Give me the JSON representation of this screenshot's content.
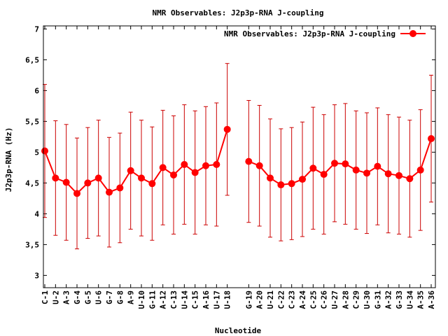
{
  "chart_data": {
    "type": "line",
    "title": "NMR Observables: J2p3p-RNA J-coupling",
    "xlabel": "Nucleotide",
    "ylabel": "J2p3p-RNA (Hz)",
    "ylim": [
      2.8,
      7.05
    ],
    "yticks": [
      "3",
      "3.5",
      "4",
      "4.5",
      "5",
      "5.5",
      "6",
      "6.5",
      "7"
    ],
    "legend_position": "top-right",
    "color": "#ff0000",
    "error_bar_color": "#cc0000",
    "series": [
      {
        "name": "NMR Observables: J2p3p-RNA J-coupling",
        "points": [
          {
            "label": "C-1",
            "y": 5.02,
            "err": 1.08
          },
          {
            "label": "U-2",
            "y": 4.58,
            "err": 0.93
          },
          {
            "label": "A-3",
            "y": 4.51,
            "err": 0.94
          },
          {
            "label": "G-4",
            "y": 4.33,
            "err": 0.9
          },
          {
            "label": "G-5",
            "y": 4.5,
            "err": 0.9
          },
          {
            "label": "U-6",
            "y": 4.58,
            "err": 0.94
          },
          {
            "label": "G-7",
            "y": 4.35,
            "err": 0.89
          },
          {
            "label": "G-8",
            "y": 4.42,
            "err": 0.89
          },
          {
            "label": "A-9",
            "y": 4.7,
            "err": 0.95
          },
          {
            "label": "U-10",
            "y": 4.58,
            "err": 0.94
          },
          {
            "label": "G-11",
            "y": 4.49,
            "err": 0.92
          },
          {
            "label": "A-12",
            "y": 4.75,
            "err": 0.93
          },
          {
            "label": "C-13",
            "y": 4.63,
            "err": 0.96
          },
          {
            "label": "U-14",
            "y": 4.8,
            "err": 0.97
          },
          {
            "label": "C-15",
            "y": 4.67,
            "err": 1.0
          },
          {
            "label": "A-16",
            "y": 4.78,
            "err": 0.96
          },
          {
            "label": "U-17",
            "y": 4.8,
            "err": 1.0
          },
          {
            "label": "U-18",
            "y": 5.37,
            "err": 1.07
          },
          {
            "label": "G-19",
            "y": 4.85,
            "err": 0.99
          },
          {
            "label": "A-20",
            "y": 4.78,
            "err": 0.98
          },
          {
            "label": "U-21",
            "y": 4.58,
            "err": 0.96
          },
          {
            "label": "C-22",
            "y": 4.47,
            "err": 0.91
          },
          {
            "label": "C-23",
            "y": 4.49,
            "err": 0.91
          },
          {
            "label": "A-24",
            "y": 4.56,
            "err": 0.93
          },
          {
            "label": "C-25",
            "y": 4.74,
            "err": 0.99
          },
          {
            "label": "C-26",
            "y": 4.64,
            "err": 0.97
          },
          {
            "label": "U-27",
            "y": 4.82,
            "err": 0.95
          },
          {
            "label": "A-28",
            "y": 4.81,
            "err": 0.98
          },
          {
            "label": "C-29",
            "y": 4.71,
            "err": 0.96
          },
          {
            "label": "U-30",
            "y": 4.66,
            "err": 0.98
          },
          {
            "label": "G-31",
            "y": 4.77,
            "err": 0.95
          },
          {
            "label": "A-32",
            "y": 4.65,
            "err": 0.96
          },
          {
            "label": "G-33",
            "y": 4.62,
            "err": 0.95
          },
          {
            "label": "U-34",
            "y": 4.57,
            "err": 0.95
          },
          {
            "label": "A-35",
            "y": 4.71,
            "err": 0.98
          },
          {
            "label": "A-36",
            "y": 5.22,
            "err": 1.03
          }
        ]
      }
    ]
  }
}
